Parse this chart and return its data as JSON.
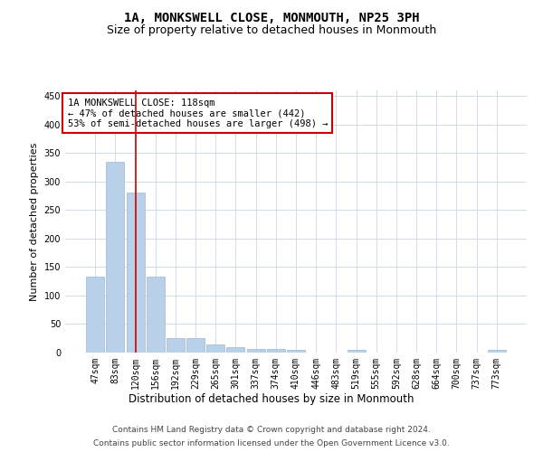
{
  "title": "1A, MONKSWELL CLOSE, MONMOUTH, NP25 3PH",
  "subtitle": "Size of property relative to detached houses in Monmouth",
  "xlabel": "Distribution of detached houses by size in Monmouth",
  "ylabel": "Number of detached properties",
  "categories": [
    "47sqm",
    "83sqm",
    "120sqm",
    "156sqm",
    "192sqm",
    "229sqm",
    "265sqm",
    "301sqm",
    "337sqm",
    "374sqm",
    "410sqm",
    "446sqm",
    "483sqm",
    "519sqm",
    "555sqm",
    "592sqm",
    "628sqm",
    "664sqm",
    "700sqm",
    "737sqm",
    "773sqm"
  ],
  "values": [
    133,
    335,
    280,
    133,
    26,
    26,
    14,
    10,
    7,
    6,
    4,
    0,
    0,
    4,
    0,
    0,
    0,
    0,
    0,
    0,
    4
  ],
  "bar_color": "#b8d0e8",
  "bar_edgecolor": "#a0b8d0",
  "vline_x": 2.0,
  "vline_color": "#cc0000",
  "annotation_text": "1A MONKSWELL CLOSE: 118sqm\n← 47% of detached houses are smaller (442)\n53% of semi-detached houses are larger (498) →",
  "annotation_box_color": "#ffffff",
  "annotation_box_edgecolor": "#cc0000",
  "ylim": [
    0,
    460
  ],
  "yticks": [
    0,
    50,
    100,
    150,
    200,
    250,
    300,
    350,
    400,
    450
  ],
  "background_color": "#ffffff",
  "grid_color": "#c8d8e8",
  "footer_line1": "Contains HM Land Registry data © Crown copyright and database right 2024.",
  "footer_line2": "Contains public sector information licensed under the Open Government Licence v3.0.",
  "title_fontsize": 10,
  "subtitle_fontsize": 9,
  "xlabel_fontsize": 8.5,
  "ylabel_fontsize": 8,
  "tick_fontsize": 7,
  "annotation_fontsize": 7.5,
  "footer_fontsize": 6.5
}
